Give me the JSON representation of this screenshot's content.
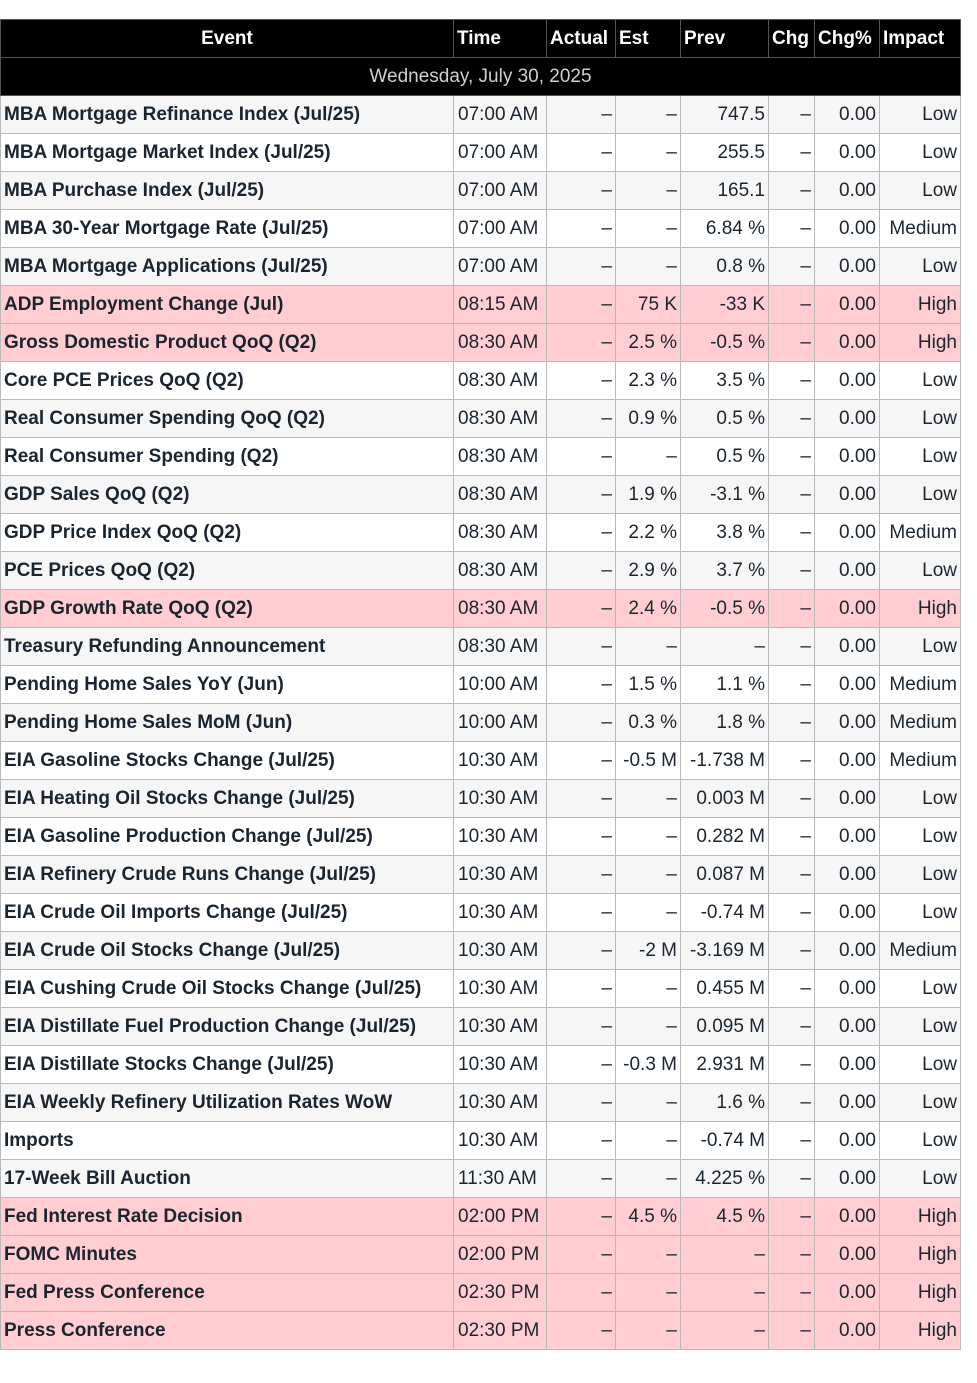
{
  "columns": {
    "event": "Event",
    "time": "Time",
    "actual": "Actual",
    "est": "Est",
    "prev": "Prev",
    "chg": "Chg",
    "chg_pct": "Chg%",
    "impact": "Impact"
  },
  "date_label": "Wednesday, July 30, 2025",
  "colors": {
    "header_bg": "#000000",
    "high_impact_row": "#ffcdd2",
    "zebra_row": "#f6f6f6"
  },
  "rows": [
    {
      "event": "MBA Mortgage Refinance Index (Jul/25)",
      "time": "07:00 AM",
      "actual": "–",
      "est": "–",
      "prev": "747.5",
      "chg": "–",
      "chg_pct": "0.00",
      "impact": "Low"
    },
    {
      "event": "MBA Mortgage Market Index (Jul/25)",
      "time": "07:00 AM",
      "actual": "–",
      "est": "–",
      "prev": "255.5",
      "chg": "–",
      "chg_pct": "0.00",
      "impact": "Low"
    },
    {
      "event": "MBA Purchase Index (Jul/25)",
      "time": "07:00 AM",
      "actual": "–",
      "est": "–",
      "prev": "165.1",
      "chg": "–",
      "chg_pct": "0.00",
      "impact": "Low"
    },
    {
      "event": "MBA 30-Year Mortgage Rate (Jul/25)",
      "time": "07:00 AM",
      "actual": "–",
      "est": "–",
      "prev": "6.84 %",
      "chg": "–",
      "chg_pct": "0.00",
      "impact": "Medium"
    },
    {
      "event": "MBA Mortgage Applications (Jul/25)",
      "time": "07:00 AM",
      "actual": "–",
      "est": "–",
      "prev": "0.8 %",
      "chg": "–",
      "chg_pct": "0.00",
      "impact": "Low"
    },
    {
      "event": "ADP Employment Change (Jul)",
      "time": "08:15 AM",
      "actual": "–",
      "est": "75 K",
      "prev": "-33 K",
      "chg": "–",
      "chg_pct": "0.00",
      "impact": "High"
    },
    {
      "event": "Gross Domestic Product QoQ (Q2)",
      "time": "08:30 AM",
      "actual": "–",
      "est": "2.5 %",
      "prev": "-0.5 %",
      "chg": "–",
      "chg_pct": "0.00",
      "impact": "High"
    },
    {
      "event": "Core PCE Prices QoQ (Q2)",
      "time": "08:30 AM",
      "actual": "–",
      "est": "2.3 %",
      "prev": "3.5 %",
      "chg": "–",
      "chg_pct": "0.00",
      "impact": "Low"
    },
    {
      "event": "Real Consumer Spending QoQ (Q2)",
      "time": "08:30 AM",
      "actual": "–",
      "est": "0.9 %",
      "prev": "0.5 %",
      "chg": "–",
      "chg_pct": "0.00",
      "impact": "Low"
    },
    {
      "event": "Real Consumer Spending (Q2)",
      "time": "08:30 AM",
      "actual": "–",
      "est": "–",
      "prev": "0.5 %",
      "chg": "–",
      "chg_pct": "0.00",
      "impact": "Low"
    },
    {
      "event": "GDP Sales QoQ (Q2)",
      "time": "08:30 AM",
      "actual": "–",
      "est": "1.9 %",
      "prev": "-3.1 %",
      "chg": "–",
      "chg_pct": "0.00",
      "impact": "Low"
    },
    {
      "event": "GDP Price Index QoQ (Q2)",
      "time": "08:30 AM",
      "actual": "–",
      "est": "2.2 %",
      "prev": "3.8 %",
      "chg": "–",
      "chg_pct": "0.00",
      "impact": "Medium"
    },
    {
      "event": "PCE Prices QoQ (Q2)",
      "time": "08:30 AM",
      "actual": "–",
      "est": "2.9 %",
      "prev": "3.7 %",
      "chg": "–",
      "chg_pct": "0.00",
      "impact": "Low"
    },
    {
      "event": "GDP Growth Rate QoQ (Q2)",
      "time": "08:30 AM",
      "actual": "–",
      "est": "2.4 %",
      "prev": "-0.5 %",
      "chg": "–",
      "chg_pct": "0.00",
      "impact": "High"
    },
    {
      "event": "Treasury Refunding Announcement",
      "time": "08:30 AM",
      "actual": "–",
      "est": "–",
      "prev": "–",
      "chg": "–",
      "chg_pct": "0.00",
      "impact": "Low"
    },
    {
      "event": "Pending Home Sales YoY (Jun)",
      "time": "10:00 AM",
      "actual": "–",
      "est": "1.5 %",
      "prev": "1.1 %",
      "chg": "–",
      "chg_pct": "0.00",
      "impact": "Medium"
    },
    {
      "event": "Pending Home Sales MoM (Jun)",
      "time": "10:00 AM",
      "actual": "–",
      "est": "0.3 %",
      "prev": "1.8 %",
      "chg": "–",
      "chg_pct": "0.00",
      "impact": "Medium"
    },
    {
      "event": "EIA Gasoline Stocks Change (Jul/25)",
      "time": "10:30 AM",
      "actual": "–",
      "est": "-0.5 M",
      "prev": "-1.738 M",
      "chg": "–",
      "chg_pct": "0.00",
      "impact": "Medium"
    },
    {
      "event": "EIA Heating Oil Stocks Change (Jul/25)",
      "time": "10:30 AM",
      "actual": "–",
      "est": "–",
      "prev": "0.003 M",
      "chg": "–",
      "chg_pct": "0.00",
      "impact": "Low"
    },
    {
      "event": "EIA Gasoline Production Change (Jul/25)",
      "time": "10:30 AM",
      "actual": "–",
      "est": "–",
      "prev": "0.282 M",
      "chg": "–",
      "chg_pct": "0.00",
      "impact": "Low"
    },
    {
      "event": "EIA Refinery Crude Runs Change (Jul/25)",
      "time": "10:30 AM",
      "actual": "–",
      "est": "–",
      "prev": "0.087 M",
      "chg": "–",
      "chg_pct": "0.00",
      "impact": "Low"
    },
    {
      "event": "EIA Crude Oil Imports Change (Jul/25)",
      "time": "10:30 AM",
      "actual": "–",
      "est": "–",
      "prev": "-0.74 M",
      "chg": "–",
      "chg_pct": "0.00",
      "impact": "Low"
    },
    {
      "event": "EIA Crude Oil Stocks Change (Jul/25)",
      "time": "10:30 AM",
      "actual": "–",
      "est": "-2 M",
      "prev": "-3.169 M",
      "chg": "–",
      "chg_pct": "0.00",
      "impact": "Medium"
    },
    {
      "event": "EIA Cushing Crude Oil Stocks Change (Jul/25)",
      "time": "10:30 AM",
      "actual": "–",
      "est": "–",
      "prev": "0.455 M",
      "chg": "–",
      "chg_pct": "0.00",
      "impact": "Low"
    },
    {
      "event": "EIA Distillate Fuel Production Change (Jul/25)",
      "time": "10:30 AM",
      "actual": "–",
      "est": "–",
      "prev": "0.095 M",
      "chg": "–",
      "chg_pct": "0.00",
      "impact": "Low"
    },
    {
      "event": "EIA Distillate Stocks Change (Jul/25)",
      "time": "10:30 AM",
      "actual": "–",
      "est": "-0.3 M",
      "prev": "2.931 M",
      "chg": "–",
      "chg_pct": "0.00",
      "impact": "Low"
    },
    {
      "event": "EIA Weekly Refinery Utilization Rates WoW",
      "time": "10:30 AM",
      "actual": "–",
      "est": "–",
      "prev": "1.6 %",
      "chg": "–",
      "chg_pct": "0.00",
      "impact": "Low"
    },
    {
      "event": "Imports",
      "time": "10:30 AM",
      "actual": "–",
      "est": "–",
      "prev": "-0.74 M",
      "chg": "–",
      "chg_pct": "0.00",
      "impact": "Low"
    },
    {
      "event": "17-Week Bill Auction",
      "time": "11:30 AM",
      "actual": "–",
      "est": "–",
      "prev": "4.225 %",
      "chg": "–",
      "chg_pct": "0.00",
      "impact": "Low"
    },
    {
      "event": "Fed Interest Rate Decision",
      "time": "02:00 PM",
      "actual": "–",
      "est": "4.5 %",
      "prev": "4.5 %",
      "chg": "–",
      "chg_pct": "0.00",
      "impact": "High"
    },
    {
      "event": "FOMC Minutes",
      "time": "02:00 PM",
      "actual": "–",
      "est": "–",
      "prev": "–",
      "chg": "–",
      "chg_pct": "0.00",
      "impact": "High"
    },
    {
      "event": "Fed Press Conference",
      "time": "02:30 PM",
      "actual": "–",
      "est": "–",
      "prev": "–",
      "chg": "–",
      "chg_pct": "0.00",
      "impact": "High"
    },
    {
      "event": "Press Conference",
      "time": "02:30 PM",
      "actual": "–",
      "est": "–",
      "prev": "–",
      "chg": "–",
      "chg_pct": "0.00",
      "impact": "High"
    }
  ]
}
